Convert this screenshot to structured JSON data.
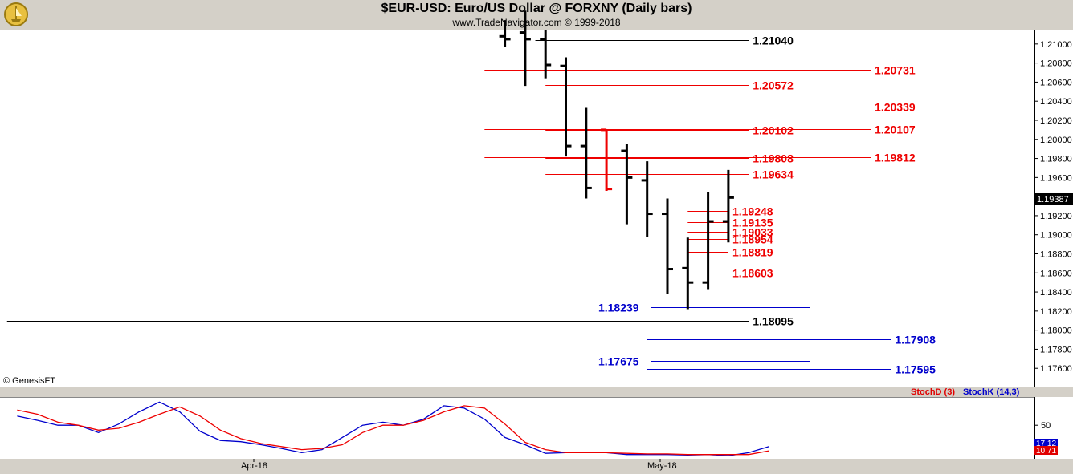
{
  "header": {
    "title": "$EUR-USD:  Euro/US Dollar @ FORXNY  (Daily bars)",
    "subtitle": "www.TradeNavigator.com © 1999-2018"
  },
  "footer": {
    "copyright": "© GenesisFT"
  },
  "colors": {
    "black": "#000000",
    "red": "#ee0000",
    "blue": "#0000cc",
    "stochD": "#e00000",
    "stochK": "#0000cc",
    "bg": "#ffffff",
    "frame": "#d4d0c8"
  },
  "chart_data": [
    {
      "type": "ohlc",
      "ylim": [
        1.174,
        1.2115
      ],
      "y_ticks": [
        1.21,
        1.208,
        1.206,
        1.204,
        1.202,
        1.2,
        1.198,
        1.196,
        1.194,
        1.192,
        1.19,
        1.188,
        1.186,
        1.184,
        1.182,
        1.18,
        1.178,
        1.176
      ],
      "y_tick_labels": [
        "1.21000",
        "1.20800",
        "1.20600",
        "1.20400",
        "1.20200",
        "1.20000",
        "1.19800",
        "1.19600",
        "1.19400",
        "1.19200",
        "1.19000",
        "1.18800",
        "1.18600",
        "1.18400",
        "1.18200",
        "1.18000",
        "1.17800",
        "1.17600"
      ],
      "x_labels": [
        {
          "label": "Apr-18",
          "index": 0
        },
        {
          "label": "May-18",
          "index": 20
        }
      ],
      "last_price": "1.19387",
      "bars": [
        {
          "i": 12,
          "o": 1.2108,
          "h": 1.2125,
          "l": 1.2097,
          "c": 1.2105,
          "color": "black"
        },
        {
          "i": 13,
          "o": 1.2112,
          "h": 1.2135,
          "l": 1.2056,
          "c": 1.2105,
          "color": "black"
        },
        {
          "i": 14,
          "o": 1.2105,
          "h": 1.2115,
          "l": 1.2064,
          "c": 1.2078,
          "color": "black"
        },
        {
          "i": 15,
          "o": 1.2077,
          "h": 1.2086,
          "l": 1.1982,
          "c": 1.1993,
          "color": "black"
        },
        {
          "i": 16,
          "o": 1.1993,
          "h": 1.2033,
          "l": 1.1938,
          "c": 1.1949,
          "color": "black"
        },
        {
          "i": 17,
          "o": 1.201,
          "h": 1.201,
          "l": 1.1946,
          "c": 1.1948,
          "color": "red"
        },
        {
          "i": 18,
          "o": 1.1988,
          "h": 1.1995,
          "l": 1.1911,
          "c": 1.196,
          "color": "black"
        },
        {
          "i": 19,
          "o": 1.1957,
          "h": 1.1977,
          "l": 1.1898,
          "c": 1.1922,
          "color": "black"
        },
        {
          "i": 20,
          "o": 1.1922,
          "h": 1.1938,
          "l": 1.1838,
          "c": 1.1864,
          "color": "black"
        },
        {
          "i": 21,
          "o": 1.1865,
          "h": 1.1897,
          "l": 1.1822,
          "c": 1.185,
          "color": "black"
        },
        {
          "i": 22,
          "o": 1.185,
          "h": 1.1945,
          "l": 1.1843,
          "c": 1.1914,
          "color": "black"
        },
        {
          "i": 23,
          "o": 1.1914,
          "h": 1.1968,
          "l": 1.1892,
          "c": 1.1939,
          "color": "black"
        }
      ],
      "levels": [
        {
          "value": 1.2104,
          "label": "1.21040",
          "color": "black",
          "from_i": 13.5,
          "to_i": 24,
          "label_i": 24.2
        },
        {
          "value": 1.20731,
          "label": "1.20731",
          "color": "red",
          "from_i": 11,
          "to_i": 30,
          "label_i": 30.2
        },
        {
          "value": 1.20572,
          "label": "1.20572",
          "color": "red",
          "from_i": 14,
          "to_i": 24,
          "label_i": 24.2
        },
        {
          "value": 1.20339,
          "label": "1.20339",
          "color": "red",
          "from_i": 11,
          "to_i": 30,
          "label_i": 30.2
        },
        {
          "value": 1.20107,
          "label": "1.20107",
          "color": "red",
          "from_i": 11,
          "to_i": 30,
          "label_i": 30.2
        },
        {
          "value": 1.20102,
          "label": "1.20102",
          "color": "red",
          "from_i": 14,
          "to_i": 24,
          "label_i": 24.2
        },
        {
          "value": 1.19812,
          "label": "1.19812",
          "color": "red",
          "from_i": 11,
          "to_i": 30,
          "label_i": 30.2
        },
        {
          "value": 1.19808,
          "label": "1.19808",
          "color": "red",
          "from_i": 14,
          "to_i": 24,
          "label_i": 24.2
        },
        {
          "value": 1.19634,
          "label": "1.19634",
          "color": "red",
          "from_i": 14,
          "to_i": 24,
          "label_i": 24.2
        },
        {
          "value": 1.19248,
          "label": "1.19248",
          "color": "red",
          "from_i": 21,
          "to_i": 23,
          "label_i": 23.2
        },
        {
          "value": 1.19135,
          "label": "1.19135",
          "color": "red",
          "from_i": 21,
          "to_i": 23,
          "label_i": 23.2
        },
        {
          "value": 1.19033,
          "label": "1.19033",
          "color": "red",
          "from_i": 21,
          "to_i": 23,
          "label_i": 23.2
        },
        {
          "value": 1.18954,
          "label": "1.18954",
          "color": "red",
          "from_i": 21,
          "to_i": 23,
          "label_i": 23.2
        },
        {
          "value": 1.18819,
          "label": "1.18819",
          "color": "red",
          "from_i": 21,
          "to_i": 23,
          "label_i": 23.2
        },
        {
          "value": 1.18603,
          "label": "1.18603",
          "color": "red",
          "from_i": 21,
          "to_i": 23,
          "label_i": 23.2
        },
        {
          "value": 1.18239,
          "label": "1.18239",
          "color": "blue",
          "from_i": 19.2,
          "to_i": 27,
          "label_i": 16.6
        },
        {
          "value": 1.18095,
          "label": "1.18095",
          "color": "black",
          "from_i": -12.5,
          "to_i": 24,
          "label_i": 24.2
        },
        {
          "value": 1.17908,
          "label": "1.17908",
          "color": "blue",
          "from_i": 19,
          "to_i": 31,
          "label_i": 31.2
        },
        {
          "value": 1.17675,
          "label": "1.17675",
          "color": "blue",
          "from_i": 19.2,
          "to_i": 27,
          "label_i": 16.6
        },
        {
          "value": 1.17595,
          "label": "1.17595",
          "color": "blue",
          "from_i": 19,
          "to_i": 31,
          "label_i": 31.2
        }
      ]
    },
    {
      "type": "line",
      "ylim": [
        -5,
        95
      ],
      "y_ticks": [
        50
      ],
      "y_tick_labels": [
        "50"
      ],
      "last_values": [
        "17.12",
        "10.71"
      ],
      "legend": [
        {
          "name": "StochD (3)",
          "color": "red"
        },
        {
          "name": "StochK (14,3)",
          "color": "blue"
        }
      ],
      "series": [
        {
          "name": "StochK (14,3)",
          "color": "blue",
          "values": [
            [
              -12,
              65
            ],
            [
              -11,
              58
            ],
            [
              -10,
              50
            ],
            [
              -9,
              50
            ],
            [
              -8,
              38
            ],
            [
              -7,
              52
            ],
            [
              -6,
              72
            ],
            [
              -5,
              88
            ],
            [
              -4,
              72
            ],
            [
              -3,
              40
            ],
            [
              -2,
              25
            ],
            [
              -1,
              23
            ],
            [
              0,
              18
            ],
            [
              1,
              12
            ],
            [
              2,
              5
            ],
            [
              3,
              10
            ],
            [
              4,
              30
            ],
            [
              5,
              50
            ],
            [
              6,
              55
            ],
            [
              7,
              50
            ],
            [
              8,
              60
            ],
            [
              9,
              82
            ],
            [
              10,
              78
            ],
            [
              11,
              60
            ],
            [
              12,
              30
            ],
            [
              13,
              18
            ],
            [
              14,
              4
            ],
            [
              15,
              5
            ],
            [
              16,
              5
            ],
            [
              17,
              5
            ],
            [
              18,
              2
            ],
            [
              19,
              2
            ],
            [
              20,
              2
            ],
            [
              21,
              1
            ],
            [
              22,
              2
            ],
            [
              23,
              0
            ],
            [
              24,
              5
            ],
            [
              25,
              15
            ]
          ]
        },
        {
          "name": "StochD (3)",
          "color": "red",
          "values": [
            [
              -12,
              75
            ],
            [
              -11,
              68
            ],
            [
              -10,
              55
            ],
            [
              -9,
              50
            ],
            [
              -8,
              42
            ],
            [
              -7,
              45
            ],
            [
              -6,
              55
            ],
            [
              -5,
              68
            ],
            [
              -4,
              80
            ],
            [
              -3,
              65
            ],
            [
              -2,
              42
            ],
            [
              -1,
              28
            ],
            [
              0,
              20
            ],
            [
              1,
              15
            ],
            [
              2,
              10
            ],
            [
              3,
              12
            ],
            [
              4,
              18
            ],
            [
              5,
              38
            ],
            [
              6,
              50
            ],
            [
              7,
              50
            ],
            [
              8,
              58
            ],
            [
              9,
              72
            ],
            [
              10,
              82
            ],
            [
              11,
              78
            ],
            [
              12,
              52
            ],
            [
              13,
              22
            ],
            [
              14,
              10
            ],
            [
              15,
              5
            ],
            [
              16,
              5
            ],
            [
              17,
              5
            ],
            [
              18,
              4
            ],
            [
              19,
              3
            ],
            [
              20,
              3
            ],
            [
              21,
              2
            ],
            [
              22,
              2
            ],
            [
              23,
              2
            ],
            [
              24,
              2
            ],
            [
              25,
              8
            ]
          ]
        }
      ]
    }
  ]
}
